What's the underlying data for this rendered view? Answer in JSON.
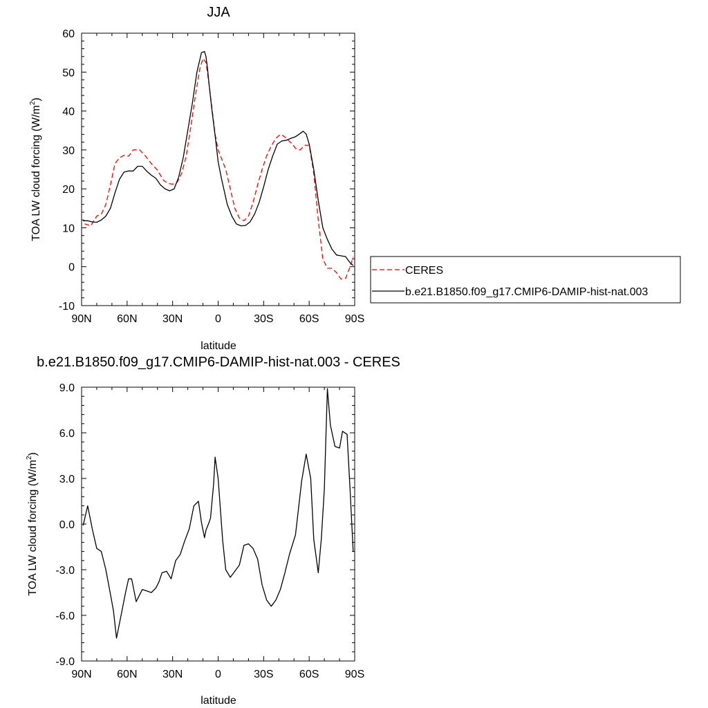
{
  "chart_data": [
    {
      "type": "line",
      "title": "JJA",
      "xlabel": "latitude",
      "ylabel": "TOA LW cloud forcing (W/m²)",
      "ylabel_main": "TOA LW cloud forcing (W/m",
      "ylabel_sup": "2",
      "ylabel_close": ")",
      "xlim": [
        -90,
        90
      ],
      "ylim": [
        -10,
        60
      ],
      "x_ticks": [
        -90,
        -60,
        -30,
        0,
        30,
        60,
        90
      ],
      "x_tick_labels": [
        "90N",
        "60N",
        "30N",
        "0",
        "30S",
        "60S",
        "90S"
      ],
      "y_ticks": [
        -10,
        0,
        10,
        20,
        30,
        40,
        50,
        60
      ],
      "y_tick_labels": [
        "-10",
        "0",
        "10",
        "20",
        "30",
        "40",
        "50",
        "60"
      ],
      "grid": false,
      "legend_position": "right",
      "series": [
        {
          "name": "CERES",
          "color": "#ff0000",
          "dash": "dashed",
          "x": [
            -88,
            -84,
            -80,
            -77,
            -74,
            -71,
            -68,
            -65,
            -62,
            -59,
            -56,
            -52,
            -48,
            -44,
            -40,
            -36,
            -33,
            -30,
            -27,
            -24,
            -21,
            -18,
            -15,
            -12,
            -10,
            -8,
            -6,
            -4,
            -2,
            0,
            2,
            5,
            8,
            11,
            14,
            17,
            20,
            23,
            26,
            29,
            32,
            35,
            38,
            41,
            43,
            45,
            47,
            49,
            51,
            54,
            57,
            60,
            63,
            66,
            69,
            72,
            75,
            78,
            81,
            84,
            87,
            89
          ],
          "y": [
            11,
            10.5,
            13,
            13.5,
            16,
            21,
            26.5,
            28,
            28.6,
            28.4,
            30,
            30.1,
            28.5,
            26.5,
            24.8,
            22.2,
            21.4,
            21.2,
            21.7,
            24,
            28.5,
            36,
            44,
            51,
            53.5,
            52.5,
            47,
            40.5,
            34,
            30,
            28,
            25,
            20,
            15,
            12.5,
            11.8,
            13,
            16.5,
            21,
            25,
            28.5,
            31,
            33,
            34,
            33.6,
            33,
            32.2,
            31.5,
            30.4,
            30,
            31.2,
            31.2,
            24,
            12,
            2,
            -0.4,
            -0.4,
            -1.5,
            -3.2,
            -3,
            0,
            2.5
          ]
        },
        {
          "name": "b.e21.B1850.f09_g17.CMIP6-DAMIP-hist-nat.003",
          "color": "#000000",
          "dash": "solid",
          "x": [
            -89,
            -86,
            -83,
            -80,
            -77,
            -74,
            -71,
            -68,
            -65,
            -62,
            -59,
            -56,
            -53,
            -50,
            -47,
            -44,
            -41,
            -38,
            -35,
            -32,
            -29,
            -26,
            -23,
            -20,
            -17,
            -14,
            -11,
            -9,
            -8,
            -7,
            -6,
            -4,
            -2,
            0,
            2,
            4,
            6,
            9,
            12,
            15,
            18,
            21,
            24,
            27,
            30,
            33,
            36,
            39,
            42,
            45,
            48,
            51,
            54,
            56,
            58,
            60,
            63,
            66,
            69,
            72,
            75,
            78,
            81,
            84,
            87,
            89
          ],
          "y": [
            11.8,
            11.8,
            11.5,
            11.4,
            12,
            13,
            15,
            19,
            22.5,
            24.3,
            24.6,
            24.6,
            25.8,
            25.8,
            24.5,
            23.5,
            22.7,
            21,
            20,
            19.5,
            20,
            23,
            28,
            35,
            42,
            50,
            55,
            55.3,
            54,
            51,
            47,
            40,
            33.7,
            27,
            23,
            19.5,
            16,
            13,
            11,
            10.5,
            10.6,
            11.5,
            13.5,
            16.5,
            20.5,
            25,
            28.5,
            31.5,
            32.3,
            32.5,
            33,
            33.4,
            34.2,
            34.8,
            34.1,
            31.5,
            25,
            17,
            10,
            7,
            4.5,
            3,
            2.8,
            2.6,
            1,
            0.3
          ]
        }
      ]
    },
    {
      "type": "line",
      "title": "b.e21.B1850.f09_g17.CMIP6-DAMIP-hist-nat.003 - CERES",
      "xlabel": "latitude",
      "ylabel": "TOA LW cloud forcing (W/m²)",
      "ylabel_main": "TOA LW cloud forcing (W/m",
      "ylabel_sup": "2",
      "ylabel_close": ")",
      "xlim": [
        -90,
        90
      ],
      "ylim": [
        -9,
        9
      ],
      "x_ticks": [
        -90,
        -60,
        -30,
        0,
        30,
        60,
        90
      ],
      "x_tick_labels": [
        "90N",
        "60N",
        "30N",
        "0",
        "30S",
        "60S",
        "90S"
      ],
      "y_ticks": [
        -9,
        -6,
        -3,
        0,
        3,
        6,
        9
      ],
      "y_tick_labels": [
        "-9.0",
        "-6.0",
        "-3.0",
        "0.0",
        "3.0",
        "6.0",
        "9.0"
      ],
      "grid": false,
      "series": [
        {
          "color": "#000000",
          "dash": "solid",
          "x": [
            -89,
            -86,
            -83,
            -80,
            -77,
            -74,
            -71,
            -69,
            -67,
            -64,
            -61,
            -59,
            -57,
            -54,
            -50,
            -47,
            -44,
            -41,
            -39,
            -37,
            -34,
            -31,
            -28,
            -25,
            -22,
            -19,
            -16,
            -13,
            -11,
            -9,
            -8,
            -6,
            -5,
            -3,
            -2,
            0,
            3,
            5,
            8,
            11,
            14,
            17,
            20,
            23,
            26,
            29,
            32,
            35,
            38,
            41,
            44,
            47,
            51,
            55,
            58,
            61,
            63,
            66,
            68,
            70,
            72,
            74,
            77,
            80,
            82,
            85,
            87,
            89
          ],
          "y": [
            -0.1,
            1.2,
            -0.3,
            -1.6,
            -1.8,
            -3,
            -4.6,
            -5.7,
            -7.5,
            -6,
            -4.5,
            -3.6,
            -3.6,
            -5.1,
            -4.3,
            -4.4,
            -4.5,
            -4.2,
            -3.8,
            -3.2,
            -3.1,
            -3.6,
            -2.4,
            -2,
            -1.1,
            -0.3,
            1.2,
            1.5,
            0.1,
            -0.9,
            -0.4,
            0.1,
            0.4,
            2.6,
            4.4,
            3,
            -1.1,
            -3,
            -3.5,
            -3.1,
            -2.7,
            -1.4,
            -1.3,
            -1.6,
            -2.3,
            -4,
            -5,
            -5.4,
            -5,
            -4.3,
            -3.2,
            -2,
            -0.7,
            2.8,
            4.6,
            3,
            -1,
            -3.2,
            -1,
            2.3,
            8.9,
            6.5,
            5.1,
            5,
            6.1,
            5.9,
            2.2,
            -1.8
          ]
        }
      ]
    }
  ]
}
